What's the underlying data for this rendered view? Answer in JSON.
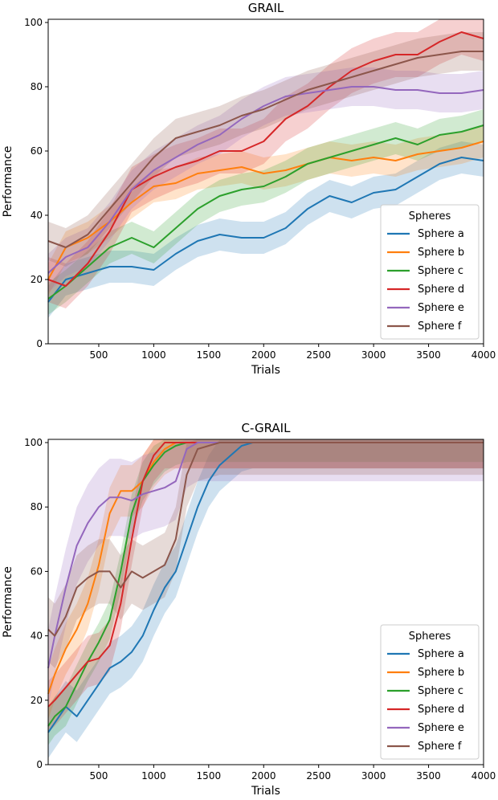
{
  "chart_data": [
    {
      "type": "line",
      "title": "GRAIL",
      "xlabel": "Trials",
      "ylabel": "Performance",
      "xlim": [
        40,
        4000
      ],
      "ylim": [
        0,
        101
      ],
      "xticks": [
        500,
        1000,
        1500,
        2000,
        2500,
        3000,
        3500,
        4000
      ],
      "yticks": [
        0,
        20,
        40,
        60,
        80,
        100
      ],
      "grid": false,
      "legend": {
        "title": "Spheres",
        "placement": "lower-right"
      },
      "shaded_band": true,
      "x": [
        40,
        200,
        400,
        600,
        800,
        1000,
        1200,
        1400,
        1600,
        1800,
        2000,
        2200,
        2400,
        2600,
        2800,
        3000,
        3200,
        3400,
        3600,
        3800,
        4000
      ],
      "series": [
        {
          "name": "Sphere a",
          "color": "#1f77b4",
          "values": [
            13,
            20,
            22,
            24,
            24,
            23,
            28,
            32,
            34,
            33,
            33,
            36,
            42,
            46,
            44,
            47,
            48,
            52,
            56,
            58,
            57
          ],
          "band": 5
        },
        {
          "name": "Sphere b",
          "color": "#ff7f0e",
          "values": [
            20,
            30,
            33,
            38,
            44,
            49,
            50,
            53,
            54,
            55,
            53,
            54,
            56,
            58,
            57,
            58,
            57,
            59,
            60,
            61,
            63
          ],
          "band": 5
        },
        {
          "name": "Sphere c",
          "color": "#2ca02c",
          "values": [
            14,
            18,
            24,
            30,
            33,
            30,
            36,
            42,
            46,
            48,
            49,
            52,
            56,
            58,
            60,
            62,
            64,
            62,
            65,
            66,
            68
          ],
          "band": 5
        },
        {
          "name": "Sphere d",
          "color": "#d62728",
          "values": [
            20,
            18,
            25,
            35,
            48,
            52,
            55,
            57,
            60,
            60,
            63,
            70,
            74,
            80,
            85,
            88,
            90,
            90,
            94,
            97,
            95
          ],
          "band": 7
        },
        {
          "name": "Sphere e",
          "color": "#9467bd",
          "values": [
            22,
            27,
            30,
            38,
            48,
            54,
            58,
            62,
            65,
            70,
            74,
            77,
            78,
            79,
            80,
            80,
            79,
            79,
            78,
            78,
            79
          ],
          "band": 6
        },
        {
          "name": "Sphere f",
          "color": "#8c564b",
          "values": [
            32,
            30,
            34,
            42,
            50,
            58,
            64,
            66,
            68,
            71,
            73,
            76,
            79,
            81,
            83,
            85,
            87,
            89,
            90,
            91,
            91
          ],
          "band": 6
        }
      ]
    },
    {
      "type": "line",
      "title": "C-GRAIL",
      "xlabel": "Trials",
      "ylabel": "Performance",
      "xlim": [
        40,
        4000
      ],
      "ylim": [
        0,
        101
      ],
      "xticks": [
        500,
        1000,
        1500,
        2000,
        2500,
        3000,
        3500,
        4000
      ],
      "yticks": [
        0,
        20,
        40,
        60,
        80,
        100
      ],
      "grid": false,
      "legend": {
        "title": "Spheres",
        "placement": "lower-right"
      },
      "shaded_band": true,
      "x": [
        40,
        100,
        200,
        300,
        400,
        500,
        600,
        700,
        800,
        900,
        1000,
        1100,
        1200,
        1300,
        1400,
        1500,
        1600,
        1700,
        1800,
        1900,
        2000,
        2500,
        3000,
        3500,
        4000
      ],
      "series": [
        {
          "name": "Sphere a",
          "color": "#1f77b4",
          "values": [
            10,
            13,
            18,
            15,
            20,
            25,
            30,
            32,
            35,
            40,
            48,
            55,
            60,
            70,
            80,
            88,
            93,
            96,
            99,
            100,
            100,
            100,
            100,
            100,
            100
          ],
          "band": 8
        },
        {
          "name": "Sphere b",
          "color": "#ff7f0e",
          "values": [
            22,
            28,
            36,
            42,
            50,
            62,
            78,
            85,
            85,
            88,
            94,
            98,
            100,
            100,
            100,
            100,
            100,
            100,
            100,
            100,
            100,
            100,
            100,
            100,
            100
          ],
          "band": 8
        },
        {
          "name": "Sphere c",
          "color": "#2ca02c",
          "values": [
            12,
            15,
            18,
            25,
            32,
            38,
            45,
            60,
            78,
            88,
            93,
            97,
            99,
            100,
            100,
            100,
            100,
            100,
            100,
            100,
            100,
            100,
            100,
            100,
            100
          ],
          "band": 6
        },
        {
          "name": "Sphere d",
          "color": "#d62728",
          "values": [
            18,
            20,
            24,
            28,
            32,
            33,
            37,
            50,
            70,
            88,
            96,
            100,
            100,
            100,
            100,
            100,
            100,
            100,
            100,
            100,
            100,
            100,
            100,
            100,
            100
          ],
          "band": 8
        },
        {
          "name": "Sphere e",
          "color": "#9467bd",
          "values": [
            30,
            40,
            55,
            68,
            75,
            80,
            83,
            83,
            82,
            84,
            85,
            86,
            88,
            98,
            100,
            100,
            100,
            100,
            100,
            100,
            100,
            100,
            100,
            100,
            100
          ],
          "band": 12
        },
        {
          "name": "Sphere f",
          "color": "#8c564b",
          "values": [
            42,
            40,
            46,
            55,
            58,
            60,
            60,
            55,
            60,
            58,
            60,
            62,
            70,
            90,
            98,
            99,
            100,
            100,
            100,
            100,
            100,
            100,
            100,
            100,
            100
          ],
          "band": 10
        }
      ]
    }
  ]
}
